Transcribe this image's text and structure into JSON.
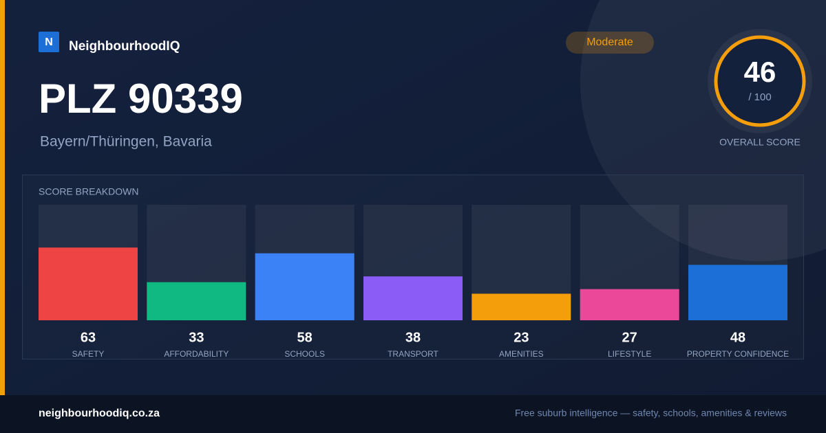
{
  "brand": {
    "logo_letter": "N",
    "name": "NeighbourhoodIQ"
  },
  "header": {
    "title": "PLZ 90339",
    "subtitle": "Bayern/Thüringen, Bavaria",
    "badge": "Moderate"
  },
  "overall": {
    "score": 46,
    "max_label": "/ 100",
    "caption": "OVERALL SCORE"
  },
  "chart_data": {
    "type": "bar",
    "title": "SCORE BREAKDOWN",
    "categories": [
      "SAFETY",
      "AFFORDABILITY",
      "SCHOOLS",
      "TRANSPORT",
      "AMENITIES",
      "LIFESTYLE",
      "PROPERTY CONFIDENCE"
    ],
    "values": [
      63,
      33,
      58,
      38,
      23,
      27,
      48
    ],
    "colors": [
      "#ef4444",
      "#10b981",
      "#3b82f6",
      "#8b5cf6",
      "#f59e0b",
      "#ec4899",
      "#1d6fd8"
    ],
    "ylim": [
      0,
      100
    ]
  },
  "footer": {
    "site": "neighbourhoodiq.co.za",
    "tagline": "Free suburb intelligence — safety, schools, amenities & reviews"
  }
}
